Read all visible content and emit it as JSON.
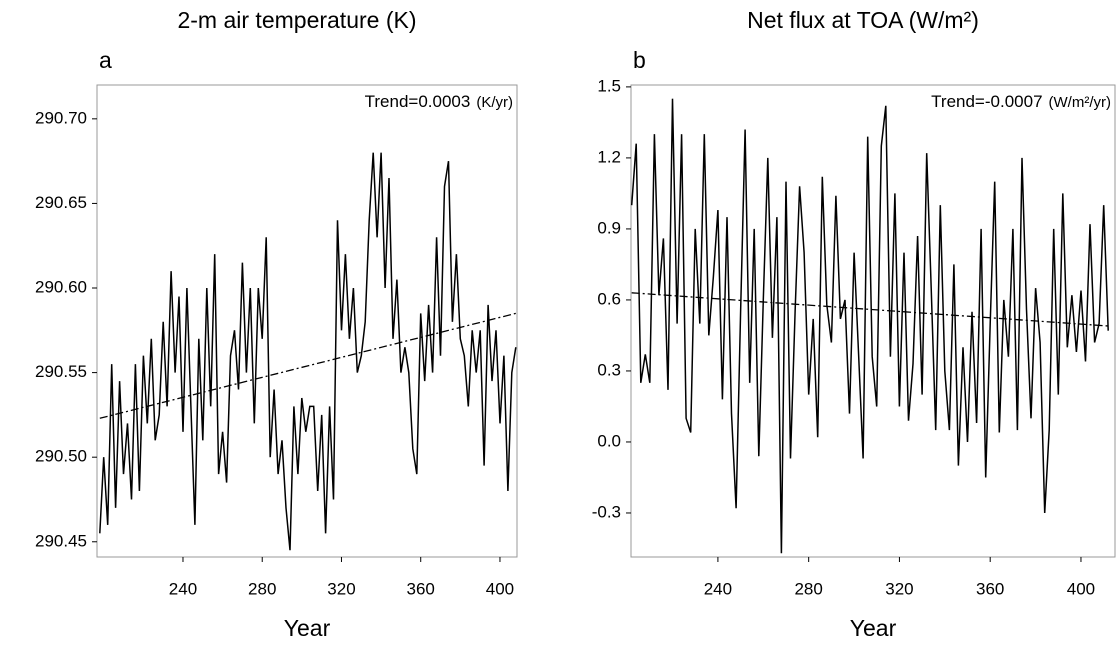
{
  "chart_data": [
    {
      "type": "line",
      "title": "2-m air temperature (K)",
      "panel": "a",
      "x_label": "Year",
      "annotation": "Trend=0.0003",
      "annotation_unit": "(K/yr)",
      "color": "#000000",
      "xlim": [
        196.6,
        408.6
      ],
      "xticks": [
        240,
        280,
        320,
        360,
        400
      ],
      "ylim": [
        290.441,
        290.72
      ],
      "yticks": [
        290.45,
        {
          "value": 290.5,
          "label": "290.50"
        },
        290.55,
        {
          "value": 290.6,
          "label": "290.60"
        },
        290.65,
        {
          "value": 290.7,
          "label": "290.70"
        }
      ],
      "x": [
        198,
        200,
        202,
        204,
        206,
        208,
        210,
        212,
        214,
        216,
        218,
        220,
        222,
        224,
        226,
        228,
        230,
        232,
        234,
        236,
        238,
        240,
        242,
        244,
        246,
        248,
        250,
        252,
        254,
        256,
        258,
        260,
        262,
        264,
        266,
        268,
        270,
        272,
        274,
        276,
        278,
        280,
        282,
        284,
        286,
        288,
        290,
        292,
        294,
        296,
        298,
        300,
        302,
        304,
        306,
        308,
        310,
        312,
        314,
        316,
        318,
        320,
        322,
        324,
        326,
        328,
        330,
        332,
        334,
        336,
        338,
        340,
        342,
        344,
        346,
        348,
        350,
        352,
        354,
        356,
        358,
        360,
        362,
        364,
        366,
        368,
        370,
        372,
        374,
        376,
        378,
        380,
        382,
        384,
        386,
        388,
        390,
        392,
        394,
        396,
        398,
        400,
        402,
        404,
        406,
        408
      ],
      "values": [
        290.455,
        290.5,
        290.46,
        290.555,
        290.47,
        290.545,
        290.49,
        290.52,
        290.475,
        290.555,
        290.48,
        290.56,
        290.52,
        290.57,
        290.51,
        290.525,
        290.58,
        290.53,
        290.61,
        290.55,
        290.595,
        290.515,
        290.6,
        290.53,
        290.46,
        290.57,
        290.51,
        290.6,
        290.53,
        290.62,
        290.49,
        290.515,
        290.485,
        290.56,
        290.575,
        290.54,
        290.615,
        290.55,
        290.6,
        290.52,
        290.6,
        290.57,
        290.63,
        290.5,
        290.54,
        290.49,
        290.51,
        290.47,
        290.445,
        290.53,
        290.49,
        290.535,
        290.515,
        290.53,
        290.53,
        290.48,
        290.525,
        290.455,
        290.53,
        290.475,
        290.64,
        290.575,
        290.62,
        290.57,
        290.6,
        290.55,
        290.56,
        290.58,
        290.64,
        290.68,
        290.63,
        290.68,
        290.6,
        290.665,
        290.57,
        290.605,
        290.55,
        290.565,
        290.55,
        290.505,
        290.49,
        290.585,
        290.545,
        290.59,
        290.55,
        290.63,
        290.56,
        290.66,
        290.675,
        290.58,
        290.62,
        290.57,
        290.56,
        290.53,
        290.575,
        290.55,
        290.575,
        290.495,
        290.59,
        290.545,
        290.575,
        290.52,
        290.56,
        290.48,
        290.55,
        290.565
      ],
      "trend": {
        "x": [
          198,
          408
        ],
        "values": [
          290.523,
          290.585
        ]
      }
    },
    {
      "type": "line",
      "title": "Net flux at TOA (W/m²)",
      "panel": "b",
      "x_label": "Year",
      "annotation": "Trend=-0.0007",
      "annotation_unit": "(W/m²/yr)",
      "color": "#000000",
      "xlim": [
        201.7,
        415
      ],
      "xticks": [
        240,
        280,
        320,
        360,
        400
      ],
      "ylim": [
        -0.486,
        1.508
      ],
      "yticks": [
        -0.3,
        {
          "value": 0,
          "label": "0.0"
        },
        0.3,
        0.6,
        0.9,
        1.2,
        1.5
      ],
      "x": [
        202,
        204,
        206,
        208,
        210,
        212,
        214,
        216,
        218,
        220,
        222,
        224,
        226,
        228,
        230,
        232,
        234,
        236,
        238,
        240,
        242,
        244,
        246,
        248,
        250,
        252,
        254,
        256,
        258,
        260,
        262,
        264,
        266,
        268,
        270,
        272,
        274,
        276,
        278,
        280,
        282,
        284,
        286,
        288,
        290,
        292,
        294,
        296,
        298,
        300,
        302,
        304,
        306,
        308,
        310,
        312,
        314,
        316,
        318,
        320,
        322,
        324,
        326,
        328,
        330,
        332,
        334,
        336,
        338,
        340,
        342,
        344,
        346,
        348,
        350,
        352,
        354,
        356,
        358,
        360,
        362,
        364,
        366,
        368,
        370,
        372,
        374,
        376,
        378,
        380,
        382,
        384,
        386,
        388,
        390,
        392,
        394,
        396,
        398,
        400,
        402,
        404,
        406,
        408,
        410,
        412
      ],
      "values": [
        1.0,
        1.26,
        0.25,
        0.37,
        0.25,
        1.3,
        0.62,
        0.86,
        0.22,
        1.45,
        0.5,
        1.3,
        0.1,
        0.04,
        0.9,
        0.5,
        1.3,
        0.45,
        0.7,
        0.98,
        0.18,
        0.95,
        0.12,
        -0.28,
        0.55,
        1.32,
        0.25,
        0.9,
        -0.06,
        0.6,
        1.2,
        0.44,
        0.95,
        -0.47,
        1.1,
        -0.07,
        0.55,
        1.08,
        0.8,
        0.2,
        0.52,
        0.02,
        1.12,
        0.58,
        0.42,
        1.04,
        0.52,
        0.6,
        0.12,
        0.8,
        0.37,
        -0.07,
        1.29,
        0.36,
        0.15,
        1.25,
        1.42,
        0.36,
        1.05,
        0.15,
        0.8,
        0.09,
        0.33,
        0.87,
        0.2,
        1.22,
        0.65,
        0.05,
        1.0,
        0.3,
        0.05,
        0.75,
        -0.1,
        0.4,
        0.0,
        0.55,
        0.08,
        0.9,
        -0.15,
        0.5,
        1.1,
        0.04,
        0.6,
        0.36,
        0.9,
        0.05,
        1.2,
        0.56,
        0.1,
        0.65,
        0.42,
        -0.3,
        0.05,
        0.9,
        0.2,
        1.05,
        0.4,
        0.62,
        0.38,
        0.64,
        0.34,
        0.92,
        0.42,
        0.5,
        1.0,
        0.47
      ],
      "trend": {
        "x": [
          202,
          412
        ],
        "values": [
          0.63,
          0.49
        ]
      }
    }
  ]
}
